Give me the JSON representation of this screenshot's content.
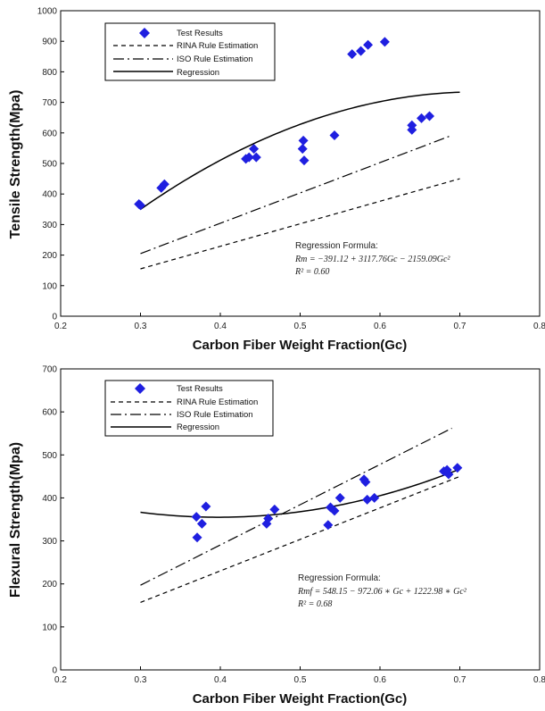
{
  "chart_data": [
    {
      "type": "scatter",
      "xlabel": "Carbon Fiber Weight Fraction(Gc)",
      "ylabel": "Tensile Strength(Mpa)",
      "xlim": [
        0.2,
        0.8
      ],
      "ylim": [
        0,
        1000
      ],
      "xticks": [
        "0.2",
        "0.3",
        "0.4",
        "0.5",
        "0.6",
        "0.7",
        "0.8"
      ],
      "yticks": [
        "0",
        "100",
        "200",
        "300",
        "400",
        "500",
        "600",
        "700",
        "800",
        "900",
        "1000"
      ],
      "legend": [
        "Test Results",
        "RINA Rule Estimation",
        "ISO Rule Estimation",
        "Regression"
      ],
      "legend_position": "top-left",
      "grid": false,
      "series": [
        {
          "name": "Test Results",
          "kind": "points",
          "color": "#1f1fe0",
          "x": [
            0.298,
            0.3,
            0.326,
            0.33,
            0.432,
            0.436,
            0.442,
            0.445,
            0.504,
            0.503,
            0.505,
            0.543,
            0.565,
            0.576,
            0.585,
            0.606,
            0.64,
            0.64,
            0.652,
            0.662
          ],
          "y": [
            367,
            363,
            420,
            432,
            515,
            520,
            548,
            520,
            575,
            548,
            510,
            592,
            858,
            868,
            888,
            898,
            610,
            625,
            648,
            655
          ]
        },
        {
          "name": "RINA Rule Estimation",
          "kind": "line",
          "dash": "5,4",
          "x": [
            0.3,
            0.7
          ],
          "y": [
            155,
            450
          ]
        },
        {
          "name": "ISO Rule Estimation",
          "kind": "line",
          "dash": "12,4,2,4",
          "x": [
            0.3,
            0.69
          ],
          "y": [
            205,
            592
          ]
        },
        {
          "name": "Regression",
          "kind": "curve",
          "coef": [
            -391.12,
            3117.76,
            -2159.09
          ],
          "x_range": [
            0.3,
            0.7
          ]
        }
      ],
      "annotation": {
        "title": "Regression Formula:",
        "formula": "Rm = −391.12 + 3117.76Gc − 2159.09Gc²",
        "r2": "R² = 0.60"
      }
    },
    {
      "type": "scatter",
      "xlabel": "Carbon Fiber Weight Fraction(Gc)",
      "ylabel": "Flexural Strength(Mpa)",
      "xlim": [
        0.2,
        0.8
      ],
      "ylim": [
        0,
        700
      ],
      "xticks": [
        "0.2",
        "0.3",
        "0.4",
        "0.5",
        "0.6",
        "0.7",
        "0.8"
      ],
      "yticks": [
        "0",
        "100",
        "200",
        "300",
        "400",
        "500",
        "600",
        "700"
      ],
      "legend": [
        "Test Results",
        "RINA Rule Estimation",
        "ISO Rule Estimation",
        "Regression"
      ],
      "legend_position": "top-left",
      "grid": false,
      "series": [
        {
          "name": "Test Results",
          "kind": "points",
          "color": "#1f1fe0",
          "x": [
            0.37,
            0.371,
            0.377,
            0.382,
            0.458,
            0.46,
            0.468,
            0.535,
            0.538,
            0.543,
            0.55,
            0.58,
            0.582,
            0.584,
            0.593,
            0.68,
            0.684,
            0.686,
            0.697
          ],
          "y": [
            356,
            308,
            340,
            380,
            340,
            352,
            373,
            337,
            378,
            370,
            400,
            443,
            437,
            396,
            400,
            462,
            465,
            455,
            470
          ]
        },
        {
          "name": "RINA Rule Estimation",
          "kind": "line",
          "dash": "5,4",
          "x": [
            0.3,
            0.7
          ],
          "y": [
            157,
            450
          ]
        },
        {
          "name": "ISO Rule Estimation",
          "kind": "line",
          "dash": "12,4,2,4",
          "x": [
            0.3,
            0.69
          ],
          "y": [
            197,
            562
          ]
        },
        {
          "name": "Regression",
          "kind": "curve",
          "coef": [
            548.15,
            -972.06,
            1222.98
          ],
          "x_range": [
            0.3,
            0.7
          ]
        }
      ],
      "annotation": {
        "title": "Regression Formula:",
        "formula": "Rmf = 548.15 − 972.06 ∗ Gc + 1222.98 ∗ Gc²",
        "r2": "R² = 0.68"
      }
    }
  ]
}
